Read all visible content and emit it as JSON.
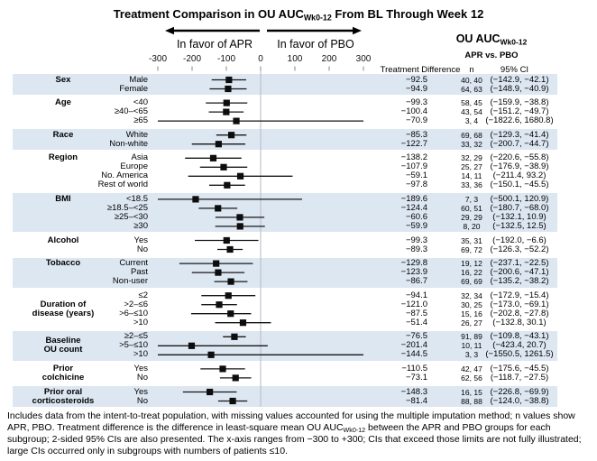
{
  "title": {
    "pre": "Treatment Comparison in OU AUC",
    "sub": "Wk0-12",
    "post": " From BL Through Week 12"
  },
  "favor": {
    "left": "In favor of APR",
    "right": "In favor of PBO"
  },
  "right_header": {
    "pre": "OU AUC",
    "sub": "Wk0-12",
    "line2": "APR vs. PBO"
  },
  "columns": {
    "diff": "Treatment Difference",
    "n": "n",
    "ci": "95% CI"
  },
  "footnote": {
    "pre": "Includes data from the intent-to-treat population, with missing values accounted for using the multiple imputation method; n values show APR, PBO. Treatment difference is the difference in least-square mean OU AUC",
    "sub": "Wk0-12",
    "post": " between the APR and PBO groups for each subgroup; 2-sided 95% CIs are also presented. The x-axis ranges from −300 to +300; CIs that exceed those limits are not fully illustrated; large CIs occurred only in subgroups with numbers of patients ≤10."
  },
  "chart_data": {
    "type": "forest",
    "title": "Treatment Comparison in OU AUC Wk0-12 From BL Through Week 12",
    "xlabel": "Treatment Difference (APR vs. PBO)",
    "x_axis": {
      "min": -300,
      "max": 300,
      "ticks": [
        -300,
        -200,
        -100,
        0,
        100,
        200,
        300
      ]
    },
    "legend_position": "none",
    "colors": {
      "band": "#dde7f2",
      "marker": "#0d0d0d",
      "ci_line": "#161616",
      "zero_line": "#b3b9c3",
      "tick": "#8a8a8a"
    },
    "groups": [
      {
        "label_lines": [
          "Sex"
        ],
        "rows": [
          {
            "label": "Male",
            "diff": -92.5,
            "n": [
              40,
              40
            ],
            "ci": [
              -142.9,
              -42.1
            ]
          },
          {
            "label": "Female",
            "diff": -94.9,
            "n": [
              64,
              63
            ],
            "ci": [
              -148.9,
              -40.9
            ]
          }
        ]
      },
      {
        "label_lines": [
          "Age"
        ],
        "rows": [
          {
            "label": "<40",
            "diff": -99.3,
            "n": [
              58,
              45
            ],
            "ci": [
              -159.9,
              -38.8
            ]
          },
          {
            "label": "≥40–<65",
            "diff": -100.4,
            "n": [
              43,
              54
            ],
            "ci": [
              -151.2,
              -49.7
            ]
          },
          {
            "label": "≥65",
            "diff": -70.9,
            "n": [
              3,
              4
            ],
            "ci": [
              -1822.6,
              1680.8
            ]
          }
        ]
      },
      {
        "label_lines": [
          "Race"
        ],
        "rows": [
          {
            "label": "White",
            "diff": -85.3,
            "n": [
              69,
              68
            ],
            "ci": [
              -129.3,
              -41.4
            ]
          },
          {
            "label": "Non-white",
            "diff": -122.7,
            "n": [
              33,
              32
            ],
            "ci": [
              -200.7,
              -44.7
            ]
          }
        ]
      },
      {
        "label_lines": [
          "Region"
        ],
        "rows": [
          {
            "label": "Asia",
            "diff": -138.2,
            "n": [
              32,
              29
            ],
            "ci": [
              -220.6,
              -55.8
            ]
          },
          {
            "label": "Europe",
            "diff": -107.9,
            "n": [
              25,
              27
            ],
            "ci": [
              -176.9,
              -38.9
            ]
          },
          {
            "label": "No. America",
            "diff": -59.1,
            "n": [
              14,
              11
            ],
            "ci": [
              -211.4,
              93.2
            ]
          },
          {
            "label": "Rest of world",
            "diff": -97.8,
            "n": [
              33,
              36
            ],
            "ci": [
              -150.1,
              -45.5
            ]
          }
        ]
      },
      {
        "label_lines": [
          "BMI"
        ],
        "rows": [
          {
            "label": "<18.5",
            "diff": -189.6,
            "n": [
              7,
              3
            ],
            "ci": [
              -500.1,
              120.9
            ]
          },
          {
            "label": "≥18.5–<25",
            "diff": -124.4,
            "n": [
              60,
              51
            ],
            "ci": [
              -180.7,
              -68.0
            ]
          },
          {
            "label": "≥25–<30",
            "diff": -60.6,
            "n": [
              29,
              29
            ],
            "ci": [
              -132.1,
              10.9
            ]
          },
          {
            "label": "≥30",
            "diff": -59.9,
            "n": [
              8,
              20
            ],
            "ci": [
              -132.5,
              12.5
            ]
          }
        ]
      },
      {
        "label_lines": [
          "Alcohol"
        ],
        "rows": [
          {
            "label": "Yes",
            "diff": -99.3,
            "n": [
              35,
              31
            ],
            "ci": [
              -192.0,
              -6.6
            ]
          },
          {
            "label": "No",
            "diff": -89.3,
            "n": [
              69,
              72
            ],
            "ci": [
              -126.3,
              -52.2
            ]
          }
        ]
      },
      {
        "label_lines": [
          "Tobacco"
        ],
        "rows": [
          {
            "label": "Current",
            "diff": -129.8,
            "n": [
              19,
              12
            ],
            "ci": [
              -237.1,
              -22.5
            ]
          },
          {
            "label": "Past",
            "diff": -123.9,
            "n": [
              16,
              22
            ],
            "ci": [
              -200.6,
              -47.1
            ]
          },
          {
            "label": "Non-user",
            "diff": -86.7,
            "n": [
              69,
              69
            ],
            "ci": [
              -135.2,
              -38.2
            ]
          }
        ]
      },
      {
        "label_lines": [
          "Duration of",
          "disease (years)"
        ],
        "rows": [
          {
            "label": "≤2",
            "diff": -94.1,
            "n": [
              32,
              34
            ],
            "ci": [
              -172.9,
              -15.4
            ]
          },
          {
            "label": ">2–≤6",
            "diff": -121.0,
            "n": [
              30,
              25
            ],
            "ci": [
              -173.0,
              -69.1
            ]
          },
          {
            "label": ">6–≤10",
            "diff": -87.5,
            "n": [
              15,
              16
            ],
            "ci": [
              -202.8,
              -27.8
            ]
          },
          {
            "label": ">10",
            "diff": -51.4,
            "n": [
              26,
              27
            ],
            "ci": [
              -132.8,
              30.1
            ]
          }
        ]
      },
      {
        "label_lines": [
          "Baseline",
          "OU count"
        ],
        "rows": [
          {
            "label": "≥2–≤5",
            "diff": -76.5,
            "n": [
              91,
              89
            ],
            "ci": [
              -109.8,
              -43.1
            ]
          },
          {
            "label": ">5–≤10",
            "diff": -201.4,
            "n": [
              10,
              11
            ],
            "ci": [
              -423.4,
              20.7
            ]
          },
          {
            "label": ">10",
            "diff": -144.5,
            "n": [
              3,
              3
            ],
            "ci": [
              -1550.5,
              1261.5
            ]
          }
        ]
      },
      {
        "label_lines": [
          "Prior",
          "colchicine"
        ],
        "rows": [
          {
            "label": "Yes",
            "diff": -110.5,
            "n": [
              42,
              47
            ],
            "ci": [
              -175.6,
              -45.5
            ]
          },
          {
            "label": "No",
            "diff": -73.1,
            "n": [
              62,
              56
            ],
            "ci": [
              -118.7,
              -27.5
            ]
          }
        ]
      },
      {
        "label_lines": [
          "Prior oral",
          "corticosteroids"
        ],
        "rows": [
          {
            "label": "Yes",
            "diff": -148.3,
            "n": [
              16,
              15
            ],
            "ci": [
              -226.8,
              -69.9
            ]
          },
          {
            "label": "No",
            "diff": -81.4,
            "n": [
              88,
              88
            ],
            "ci": [
              -124.0,
              -38.8
            ]
          }
        ]
      }
    ]
  }
}
